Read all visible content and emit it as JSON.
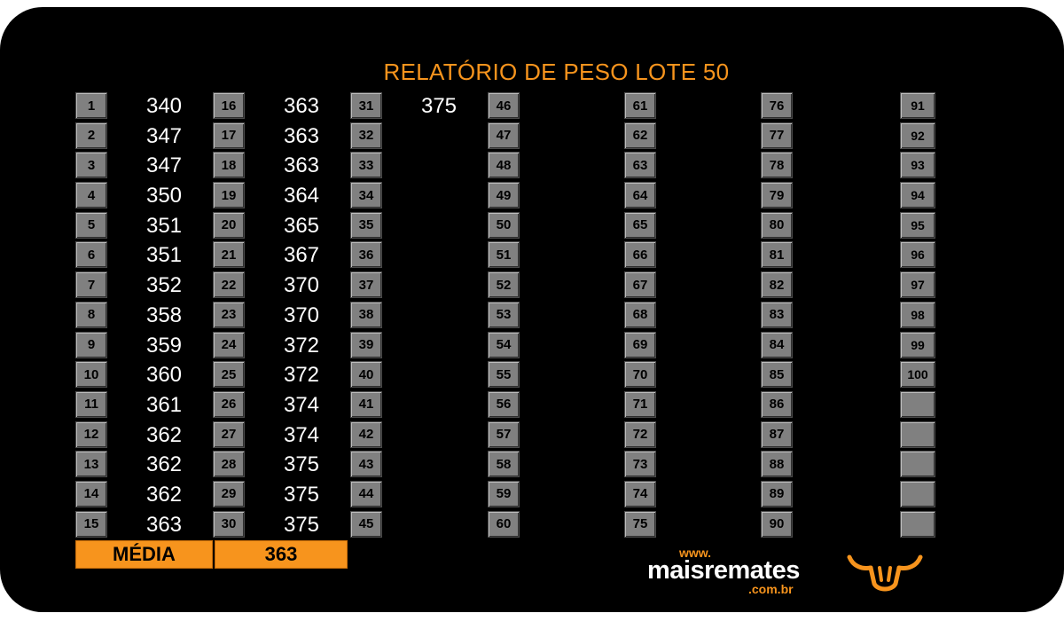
{
  "title": "RELATÓRIO DE PESO LOTE 50",
  "columns": [
    {
      "numbers": [
        "1",
        "2",
        "3",
        "4",
        "5",
        "6",
        "7",
        "8",
        "9",
        "10",
        "11",
        "12",
        "13",
        "14",
        "15"
      ],
      "weights": [
        "340",
        "347",
        "347",
        "350",
        "351",
        "351",
        "352",
        "358",
        "359",
        "360",
        "361",
        "362",
        "362",
        "362",
        "363"
      ]
    },
    {
      "numbers": [
        "16",
        "17",
        "18",
        "19",
        "20",
        "21",
        "22",
        "23",
        "24",
        "25",
        "26",
        "27",
        "28",
        "29",
        "30"
      ],
      "weights": [
        "363",
        "363",
        "363",
        "364",
        "365",
        "367",
        "370",
        "370",
        "372",
        "372",
        "374",
        "374",
        "375",
        "375",
        "375"
      ]
    },
    {
      "numbers": [
        "31",
        "32",
        "33",
        "34",
        "35",
        "36",
        "37",
        "38",
        "39",
        "40",
        "41",
        "42",
        "43",
        "44",
        "45"
      ],
      "weights": [
        "375",
        "",
        "",
        "",
        "",
        "",
        "",
        "",
        "",
        "",
        "",
        "",
        "",
        "",
        ""
      ]
    },
    {
      "numbers": [
        "46",
        "47",
        "48",
        "49",
        "50",
        "51",
        "52",
        "53",
        "54",
        "55",
        "56",
        "57",
        "58",
        "59",
        "60"
      ],
      "weights": [
        "",
        "",
        "",
        "",
        "",
        "",
        "",
        "",
        "",
        "",
        "",
        "",
        "",
        "",
        ""
      ]
    },
    {
      "numbers": [
        "61",
        "62",
        "63",
        "64",
        "65",
        "66",
        "67",
        "68",
        "69",
        "70",
        "71",
        "72",
        "73",
        "74",
        "75"
      ],
      "weights": [
        "",
        "",
        "",
        "",
        "",
        "",
        "",
        "",
        "",
        "",
        "",
        "",
        "",
        "",
        ""
      ]
    },
    {
      "numbers": [
        "76",
        "77",
        "78",
        "79",
        "80",
        "81",
        "82",
        "83",
        "84",
        "85",
        "86",
        "87",
        "88",
        "89",
        "90"
      ],
      "weights": [
        "",
        "",
        "",
        "",
        "",
        "",
        "",
        "",
        "",
        "",
        "",
        "",
        "",
        "",
        ""
      ]
    },
    {
      "numbers": [
        "91",
        "92",
        "93",
        "94",
        "95",
        "96",
        "97",
        "98",
        "99",
        "100",
        "",
        "",
        "",
        "",
        ""
      ],
      "weights": [
        "",
        "",
        "",
        "",
        "",
        "",
        "",
        "",
        "",
        "",
        "",
        "",
        "",
        "",
        ""
      ]
    }
  ],
  "average": {
    "label": "MÉDIA",
    "value": "363"
  },
  "logo": {
    "www": "www.",
    "name": "maisremates",
    "domain": ".com.br"
  },
  "colors": {
    "accent": "#f7941d",
    "background": "#000000",
    "cell": "#808080"
  },
  "icons": {
    "brand_mark": "bull-head-icon"
  }
}
